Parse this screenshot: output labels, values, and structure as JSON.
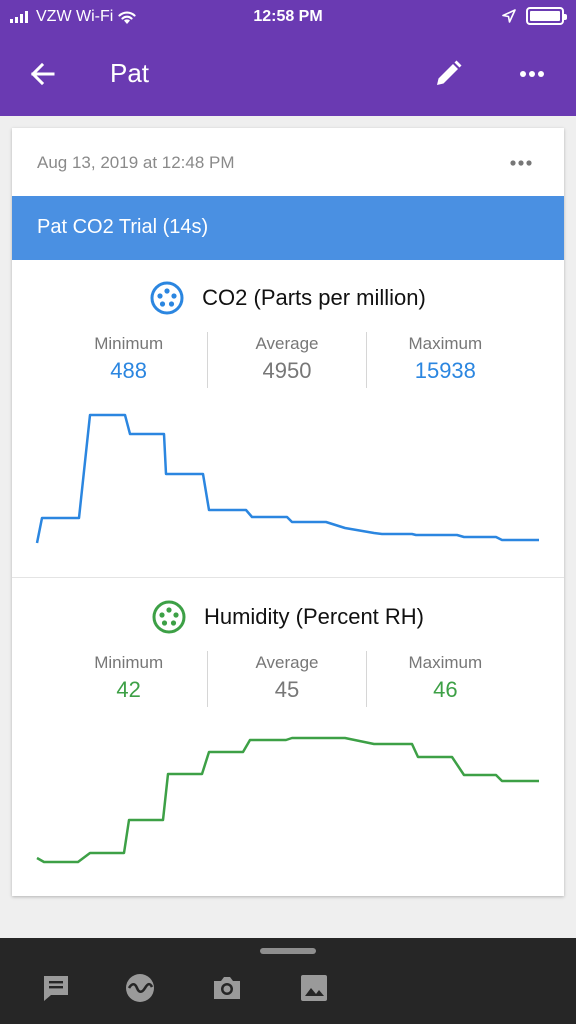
{
  "status_bar": {
    "carrier": "VZW Wi-Fi",
    "time": "12:58 PM",
    "icons": [
      "signal-icon",
      "wifi-icon",
      "location-arrow-icon",
      "battery-icon"
    ]
  },
  "appbar": {
    "title": "Pat",
    "background": "#6a3ab2",
    "icons": [
      "back-arrow-icon",
      "pencil-icon",
      "more-horizontal-icon"
    ]
  },
  "card": {
    "date": "Aug 13, 2019 at 12:48 PM",
    "trial_title": "Pat CO2 Trial (14s)",
    "trial_color": "#4a90e2",
    "sensors": [
      {
        "name": "CO2 (Parts per million)",
        "icon": "sensor-dots-icon",
        "color": "#2b86e0",
        "stats": [
          {
            "label": "Minimum",
            "value": "488"
          },
          {
            "label": "Average",
            "value": "4950"
          },
          {
            "label": "Maximum",
            "value": "15938"
          }
        ]
      },
      {
        "name": "Humidity (Percent RH)",
        "icon": "sensor-dots-icon",
        "color": "#3da046",
        "stats": [
          {
            "label": "Minimum",
            "value": "42"
          },
          {
            "label": "Average",
            "value": "45"
          },
          {
            "label": "Maximum",
            "value": "46"
          }
        ]
      }
    ]
  },
  "bottom_bar": {
    "icons": [
      "note-icon",
      "sensor-wave-icon",
      "camera-icon",
      "gallery-icon"
    ]
  }
}
